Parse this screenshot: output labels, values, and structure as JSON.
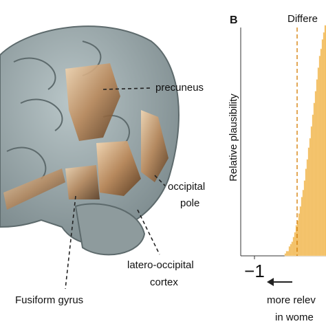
{
  "panel_a": {
    "labels": [
      "precuneus",
      "occipital",
      "pole",
      "latero-occipital",
      "cortex",
      "Fusiform gyrus"
    ]
  },
  "chart_data": {
    "type": "histogram",
    "panel_label": "B",
    "title": "Differe",
    "ylabel": "Relative plausibility",
    "bins": [
      -0.78,
      -0.77,
      -0.76,
      -0.75,
      -0.74,
      -0.73,
      -0.72,
      -0.71,
      -0.7,
      -0.69,
      -0.68,
      -0.67,
      -0.66,
      -0.65,
      -0.64,
      -0.63,
      -0.62,
      -0.61,
      -0.6,
      -0.59,
      -0.58,
      -0.57,
      -0.56,
      -0.55,
      -0.54,
      -0.53,
      -0.52,
      -0.51,
      -0.5,
      -0.49,
      -0.48
    ],
    "values": [
      0.01,
      0.02,
      0.02,
      0.04,
      0.05,
      0.06,
      0.08,
      0.1,
      0.13,
      0.15,
      0.18,
      0.21,
      0.25,
      0.28,
      0.32,
      0.37,
      0.41,
      0.46,
      0.5,
      0.55,
      0.6,
      0.65,
      0.7,
      0.75,
      0.8,
      0.85,
      0.88,
      0.92,
      0.95,
      0.98
    ],
    "color": "#f0b042",
    "reference_line": -0.69,
    "xlim": [
      -1.1,
      -0.48
    ],
    "ylim": [
      0,
      1
    ],
    "xticks": [
      {
        "value": -1,
        "label": "−1"
      }
    ],
    "arrow_text": [
      "more relev",
      "in wome"
    ]
  }
}
